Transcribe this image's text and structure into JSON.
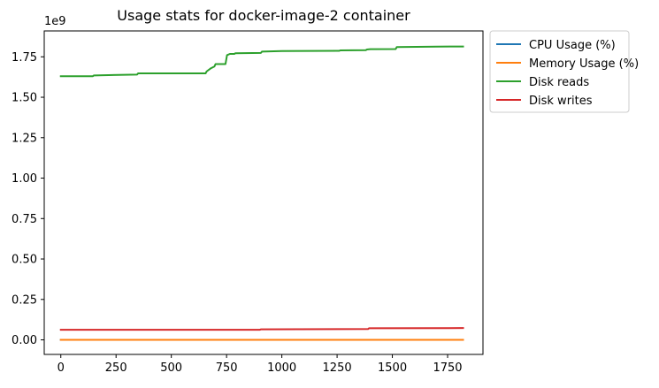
{
  "chart_data": {
    "type": "line",
    "title": "Usage stats for docker-image-2 container",
    "xlabel": "",
    "ylabel": "",
    "y_offset_label": "1e9",
    "xlim": [
      -75,
      1910
    ],
    "ylim": [
      -0.09,
      1.91
    ],
    "x_ticks": [
      0,
      250,
      500,
      750,
      1000,
      1250,
      1500,
      1750
    ],
    "x_tick_labels": [
      "0",
      "250",
      "500",
      "750",
      "1000",
      "1250",
      "1500",
      "1750"
    ],
    "y_ticks": [
      0.0,
      0.25,
      0.5,
      0.75,
      1.0,
      1.25,
      1.5,
      1.75
    ],
    "y_tick_labels": [
      "0.00",
      "0.25",
      "0.50",
      "0.75",
      "1.00",
      "1.25",
      "1.50",
      "1.75"
    ],
    "grid": false,
    "legend_position": "outside-right-top",
    "series": [
      {
        "name": "CPU Usage (%)",
        "color": "#1f77b4",
        "points": [
          [
            0,
            0.0
          ],
          [
            1820,
            0.0
          ]
        ]
      },
      {
        "name": "Memory Usage (%)",
        "color": "#ff7f0e",
        "points": [
          [
            0,
            0.0
          ],
          [
            1820,
            0.0
          ]
        ]
      },
      {
        "name": "Disk reads",
        "color": "#2ca02c",
        "points": [
          [
            0,
            1.63
          ],
          [
            145,
            1.63
          ],
          [
            150,
            1.635
          ],
          [
            345,
            1.64
          ],
          [
            350,
            1.648
          ],
          [
            655,
            1.648
          ],
          [
            660,
            1.66
          ],
          [
            680,
            1.68
          ],
          [
            695,
            1.69
          ],
          [
            700,
            1.705
          ],
          [
            745,
            1.705
          ],
          [
            752,
            1.76
          ],
          [
            765,
            1.768
          ],
          [
            785,
            1.768
          ],
          [
            790,
            1.772
          ],
          [
            905,
            1.774
          ],
          [
            910,
            1.782
          ],
          [
            1000,
            1.786
          ],
          [
            1260,
            1.787
          ],
          [
            1265,
            1.79
          ],
          [
            1380,
            1.791
          ],
          [
            1385,
            1.795
          ],
          [
            1400,
            1.797
          ],
          [
            1515,
            1.798
          ],
          [
            1520,
            1.81
          ],
          [
            1700,
            1.813
          ],
          [
            1820,
            1.814
          ]
        ]
      },
      {
        "name": "Disk writes",
        "color": "#d62728",
        "points": [
          [
            0,
            0.062
          ],
          [
            900,
            0.062
          ],
          [
            905,
            0.065
          ],
          [
            1390,
            0.067
          ],
          [
            1395,
            0.072
          ],
          [
            1820,
            0.073
          ]
        ]
      }
    ]
  }
}
